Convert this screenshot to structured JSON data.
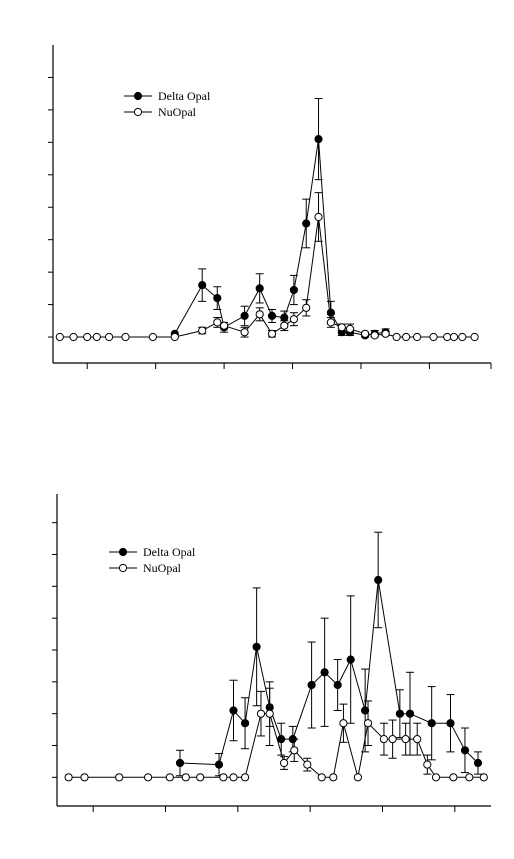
{
  "chart_data": [
    {
      "type": "line",
      "title": "",
      "xlabel": "",
      "ylabel": "",
      "xlim": [
        0,
        32
      ],
      "ylim": [
        -0.8,
        9
      ],
      "x_ticks": [
        2.5,
        7.5,
        12.5,
        17.5,
        22.5,
        27.5,
        32
      ],
      "y_ticks": [
        0,
        1,
        2,
        3,
        4,
        5,
        6,
        7,
        8
      ],
      "grid": false,
      "legend_placement": "top-left",
      "series": [
        {
          "name": "Delta Opal",
          "marker": "filled-circle",
          "color": "#000000",
          "x": [
            8.9,
            10.9,
            12,
            12.5,
            14,
            15.1,
            16,
            16.9,
            17.6,
            18.5,
            19.4,
            20.3,
            21.1,
            21.7,
            22.8,
            23.5,
            24.3
          ],
          "y": [
            0.1,
            1.6,
            1.2,
            0.3,
            0.65,
            1.5,
            0.65,
            0.6,
            1.45,
            3.5,
            6.1,
            0.75,
            0.15,
            0.15,
            0.05,
            0.1,
            0.15
          ],
          "error": [
            0,
            0.5,
            0.35,
            0.15,
            0.3,
            0.45,
            0.2,
            0.2,
            0.45,
            0.75,
            1.25,
            0.35,
            0.1,
            0.1,
            0.05,
            0.1,
            0.1
          ]
        },
        {
          "name": "NuOpal",
          "marker": "open-circle",
          "color": "#000000",
          "x": [
            0.5,
            1.5,
            2.5,
            3.2,
            4.1,
            5.3,
            7.3,
            8.9,
            10.9,
            12,
            12.5,
            14,
            15.1,
            16,
            16.9,
            17.6,
            18.5,
            19.4,
            20.3,
            21.1,
            21.7,
            22.8,
            23.5,
            24.3,
            25.1,
            25.8,
            26.6,
            27.8,
            28.8,
            29.3,
            29.9,
            30.8
          ],
          "y": [
            0,
            0,
            0,
            0,
            0,
            0,
            0,
            0,
            0.2,
            0.45,
            0.35,
            0.15,
            0.7,
            0.1,
            0.35,
            0.55,
            0.9,
            3.7,
            0.45,
            0.3,
            0.25,
            0.1,
            0.05,
            0.1,
            0,
            0,
            0,
            0,
            0,
            0,
            0,
            0
          ],
          "error": [
            0,
            0,
            0,
            0,
            0,
            0,
            0,
            0,
            0.1,
            0.15,
            0.1,
            0.15,
            0.2,
            0.1,
            0.15,
            0.2,
            0.25,
            0.75,
            0.15,
            0.1,
            0.15,
            0.05,
            0.05,
            0.05,
            0,
            0,
            0,
            0,
            0,
            0,
            0,
            0
          ]
        }
      ]
    },
    {
      "type": "line",
      "title": "",
      "xlabel": "",
      "ylabel": "",
      "xlim": [
        0,
        30
      ],
      "ylim": [
        -0.9,
        8.9
      ],
      "x_ticks": [
        2.5,
        7.5,
        12.5,
        17.5,
        22.5,
        27.5
      ],
      "y_ticks": [
        0,
        1,
        2,
        3,
        4,
        5,
        6,
        7,
        8
      ],
      "grid": false,
      "legend_placement": "top-left",
      "series": [
        {
          "name": "Delta Opal",
          "marker": "filled-circle",
          "color": "#000000",
          "x": [
            8.5,
            11.2,
            12.2,
            13,
            13.8,
            14.7,
            15.5,
            16.3,
            17.6,
            18.5,
            19.4,
            20.3,
            21.3,
            22.2,
            23.7,
            24.4,
            25.9,
            27.2,
            28.2,
            29.1
          ],
          "y": [
            0.45,
            0.4,
            2.1,
            1.7,
            4.1,
            2.2,
            1.2,
            1.2,
            2.9,
            3.3,
            2.9,
            3.7,
            2.1,
            6.2,
            2.0,
            2.0,
            1.7,
            1.7,
            0.85,
            0.45
          ],
          "error": [
            0.4,
            0.35,
            0.95,
            0.8,
            1.85,
            0.6,
            0.5,
            0.4,
            1.35,
            1.7,
            0.8,
            2.0,
            1.3,
            1.5,
            0.75,
            1.3,
            1.15,
            0.9,
            0.7,
            0.35
          ]
        },
        {
          "name": "NuOpal",
          "marker": "open-circle",
          "color": "#000000",
          "x": [
            0.8,
            1.9,
            4.3,
            6.3,
            7.8,
            8.9,
            9.9,
            11.5,
            12.2,
            13,
            14.1,
            14.7,
            15.7,
            16.4,
            17.3,
            18.3,
            19.1,
            19.8,
            20.8,
            21.5,
            22.6,
            23.2,
            24.1,
            24.9,
            25.6,
            26.2,
            27.4,
            28.5,
            29.5
          ],
          "y": [
            0,
            0,
            0,
            0,
            0,
            0,
            0,
            0,
            0,
            0,
            2.0,
            2.0,
            0.45,
            0.85,
            0.4,
            0,
            0,
            1.7,
            0,
            1.7,
            1.2,
            1.2,
            1.2,
            1.2,
            0.4,
            0,
            0,
            0,
            0
          ],
          "error": [
            0,
            0,
            0,
            0,
            0,
            0,
            0,
            0,
            0,
            0,
            0.7,
            1.0,
            0.2,
            0.35,
            0.2,
            0,
            0,
            0.6,
            0,
            0.7,
            0.5,
            0.6,
            0.5,
            0.5,
            0.3,
            0,
            0,
            0,
            0
          ]
        }
      ]
    }
  ]
}
